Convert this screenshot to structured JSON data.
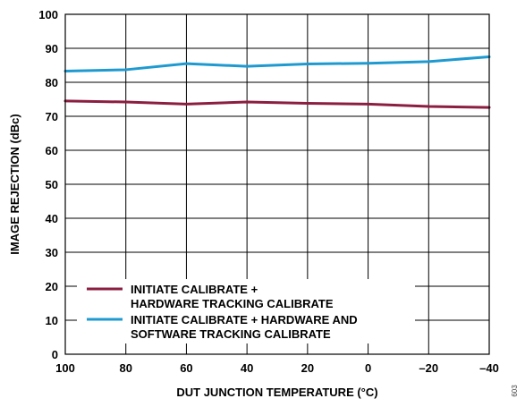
{
  "chart_data": {
    "type": "line",
    "title": "",
    "xlabel": "DUT JUNCTION TEMPERATURE (°C)",
    "ylabel": "IMAGE REJECTION (dBc)",
    "x_ticks": [
      100,
      80,
      60,
      40,
      20,
      0,
      -20,
      -40
    ],
    "x_tick_labels": [
      "100",
      "80",
      "60",
      "40",
      "20",
      "0",
      "–20",
      "–40"
    ],
    "xlim": [
      100,
      -40
    ],
    "x_reversed": true,
    "y_ticks": [
      0,
      10,
      20,
      30,
      40,
      50,
      60,
      70,
      80,
      90,
      100
    ],
    "y_tick_labels": [
      "0",
      "10",
      "20",
      "30",
      "40",
      "50",
      "60",
      "70",
      "80",
      "90",
      "100"
    ],
    "ylim": [
      0,
      100
    ],
    "grid": true,
    "legend_position": "bottom-left",
    "series": [
      {
        "name_lines": [
          "INITIATE CALIBRATE +",
          "HARDWARE TRACKING CALIBRATE"
        ],
        "color": "#8B1E41",
        "x": [
          100,
          80,
          60,
          40,
          20,
          0,
          -20,
          -40
        ],
        "y": [
          74.5,
          74.2,
          73.6,
          74.2,
          73.8,
          73.6,
          72.9,
          72.6
        ]
      },
      {
        "name_lines": [
          "INITIATE CALIBRATE + HARDWARE AND",
          "SOFTWARE TRACKING CALIBRATE"
        ],
        "color": "#1E9AD0",
        "x": [
          100,
          80,
          60,
          40,
          20,
          0,
          -20,
          -40
        ],
        "y": [
          83.3,
          83.7,
          85.5,
          84.7,
          85.4,
          85.6,
          86.1,
          87.5
        ]
      }
    ]
  },
  "figure_id": "603"
}
